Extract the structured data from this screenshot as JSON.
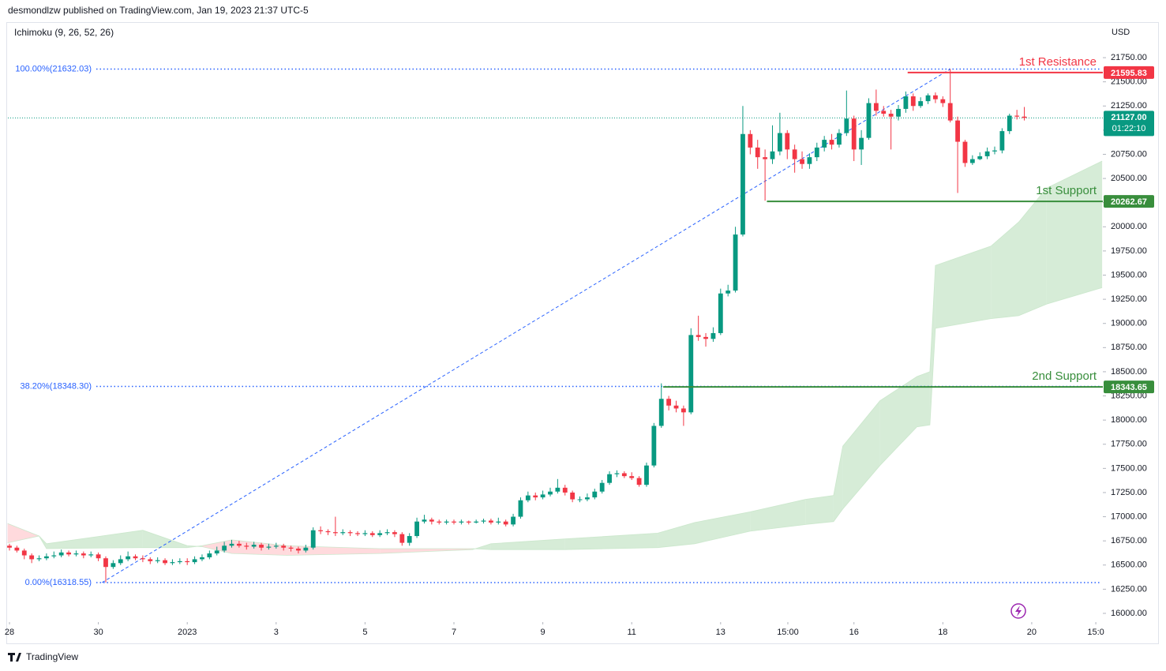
{
  "header": {
    "publisher": "desmondlzw published on TradingView.com, Jan 19, 2023 21:37 UTC-5",
    "indicator": "Ichimoku (9, 26, 52, 26)",
    "currency": "USD",
    "brand": "TradingView"
  },
  "chart_data": {
    "type": "candlestick",
    "x": [
      0,
      4,
      8,
      12,
      16,
      20,
      24,
      28,
      32,
      36,
      40,
      44,
      48,
      52,
      56,
      60,
      64,
      68,
      72,
      76,
      80,
      84,
      88,
      92,
      96,
      100,
      104,
      108,
      112,
      116,
      120,
      124,
      128,
      132,
      136,
      140,
      144,
      148,
      152,
      156,
      160,
      164,
      168,
      172,
      176,
      180,
      184,
      188,
      192,
      196,
      200,
      204,
      208,
      212,
      216,
      220,
      224,
      228,
      232,
      236,
      240,
      244,
      248,
      252,
      256,
      260,
      264,
      268,
      272,
      276,
      280,
      284,
      288,
      292,
      296,
      300,
      304,
      308,
      312,
      316,
      320,
      324,
      328,
      332,
      336,
      340,
      344,
      348,
      352,
      356,
      360,
      364,
      368,
      372,
      376,
      380,
      384,
      388,
      392,
      396,
      400,
      404,
      408,
      412,
      416,
      420,
      424,
      428,
      432,
      436,
      440,
      444,
      448,
      452,
      456,
      460,
      464,
      468,
      472,
      476,
      480,
      484,
      488,
      492,
      496,
      500,
      504,
      508,
      512,
      516,
      520,
      524,
      528,
      532,
      536,
      540,
      544,
      548
    ],
    "open": [
      16700,
      16680,
      16650,
      16600,
      16560,
      16570,
      16590,
      16600,
      16630,
      16610,
      16620,
      16600,
      16610,
      16570,
      16480,
      16520,
      16560,
      16590,
      16570,
      16560,
      16540,
      16550,
      16520,
      16530,
      16540,
      16530,
      16560,
      16580,
      16620,
      16650,
      16700,
      16720,
      16700,
      16690,
      16710,
      16680,
      16690,
      16700,
      16680,
      16670,
      16650,
      16680,
      16860,
      16850,
      16840,
      16830,
      16840,
      16830,
      16820,
      16830,
      16810,
      16830,
      16840,
      16820,
      16730,
      16800,
      16950,
      16970,
      16950,
      16940,
      16950,
      16940,
      16950,
      16940,
      16950,
      16960,
      16940,
      16950,
      16920,
      17000,
      17170,
      17220,
      17200,
      17230,
      17260,
      17300,
      17250,
      17180,
      17180,
      17200,
      17260,
      17350,
      17440,
      17450,
      17420,
      17400,
      17330,
      17530,
      17940,
      18220,
      18150,
      18120,
      18080,
      18880,
      18860,
      18840,
      18900,
      19310,
      19340,
      19920,
      20960,
      20820,
      20720,
      20700,
      20780,
      20970,
      20800,
      20700,
      20650,
      20720,
      20820,
      20900,
      20850,
      20970,
      21120,
      20800,
      20920,
      21280,
      21200,
      21170,
      21140,
      21220,
      21350,
      21250,
      21300,
      21360,
      21320,
      21280,
      21100,
      20880,
      20660,
      20700,
      20730,
      20780,
      20790,
      20990,
      21150,
      21140
    ],
    "high": [
      16720,
      16700,
      16670,
      16620,
      16600,
      16620,
      16640,
      16660,
      16650,
      16650,
      16640,
      16640,
      16630,
      16590,
      16550,
      16600,
      16640,
      16610,
      16600,
      16580,
      16580,
      16570,
      16560,
      16570,
      16570,
      16590,
      16610,
      16650,
      16690,
      16740,
      16760,
      16750,
      16730,
      16740,
      16730,
      16720,
      16730,
      16720,
      16700,
      16690,
      16710,
      16890,
      16900,
      16870,
      17000,
      16870,
      16860,
      16850,
      16860,
      16850,
      16860,
      16870,
      16860,
      16840,
      16830,
      16990,
      17020,
      16990,
      16970,
      16970,
      16970,
      16970,
      16960,
      16970,
      16980,
      16980,
      16990,
      16970,
      17030,
      17200,
      17260,
      17250,
      17270,
      17300,
      17390,
      17330,
      17270,
      17210,
      17240,
      17290,
      17380,
      17470,
      17480,
      17470,
      17460,
      17420,
      17560,
      17970,
      18380,
      18250,
      18200,
      18150,
      18950,
      19080,
      18900,
      18960,
      19360,
      19400,
      20000,
      21250,
      21000,
      20900,
      20800,
      21050,
      21180,
      21000,
      20850,
      20780,
      20760,
      20870,
      20940,
      20960,
      21010,
      21410,
      21150,
      21000,
      21330,
      21420,
      21250,
      21210,
      21260,
      21400,
      21380,
      21340,
      21380,
      21390,
      21350,
      21632,
      21140,
      20900,
      20740,
      20770,
      20820,
      20830,
      21020,
      21170,
      21210,
      21240
    ],
    "low": [
      16650,
      16630,
      16560,
      16520,
      16540,
      16550,
      16570,
      16580,
      16590,
      16590,
      16570,
      16580,
      16540,
      16320,
      16460,
      16500,
      16540,
      16550,
      16530,
      16510,
      16520,
      16500,
      16500,
      16510,
      16500,
      16510,
      16540,
      16560,
      16600,
      16630,
      16680,
      16680,
      16660,
      16670,
      16650,
      16660,
      16670,
      16650,
      16640,
      16620,
      16630,
      16660,
      16820,
      16810,
      16800,
      16810,
      16800,
      16800,
      16800,
      16790,
      16790,
      16810,
      16790,
      16700,
      16700,
      16780,
      16930,
      16920,
      16920,
      16920,
      16920,
      16920,
      16920,
      16930,
      16930,
      16920,
      16920,
      16900,
      16900,
      16980,
      17150,
      17170,
      17180,
      17210,
      17240,
      17220,
      17150,
      17150,
      17160,
      17180,
      17240,
      17330,
      17410,
      17400,
      17380,
      17310,
      17310,
      17510,
      17920,
      18100,
      18080,
      17940,
      18060,
      18820,
      18760,
      18810,
      18880,
      19280,
      19320,
      19900,
      20750,
      20600,
      20270,
      20650,
      20740,
      20700,
      20560,
      20600,
      20600,
      20680,
      20780,
      20800,
      20820,
      20940,
      20680,
      20640,
      20900,
      21150,
      21140,
      20800,
      21100,
      21180,
      21200,
      21230,
      21270,
      21280,
      21240,
      21080,
      20350,
      20620,
      20640,
      20690,
      20700,
      20750,
      20760,
      20960,
      21110,
      21100
    ],
    "close": [
      16680,
      16650,
      16600,
      16560,
      16570,
      16590,
      16600,
      16630,
      16610,
      16620,
      16600,
      16610,
      16570,
      16480,
      16520,
      16560,
      16590,
      16570,
      16560,
      16540,
      16550,
      16520,
      16530,
      16540,
      16530,
      16560,
      16580,
      16620,
      16650,
      16700,
      16720,
      16700,
      16690,
      16710,
      16680,
      16690,
      16700,
      16680,
      16670,
      16650,
      16680,
      16860,
      16850,
      16840,
      16830,
      16840,
      16830,
      16820,
      16830,
      16810,
      16830,
      16840,
      16820,
      16730,
      16800,
      16950,
      16970,
      16950,
      16940,
      16950,
      16940,
      16950,
      16940,
      16950,
      16960,
      16940,
      16950,
      16920,
      17000,
      17170,
      17220,
      17200,
      17230,
      17260,
      17300,
      17250,
      17180,
      17180,
      17200,
      17260,
      17350,
      17440,
      17450,
      17420,
      17400,
      17330,
      17530,
      17940,
      18220,
      18150,
      18120,
      18080,
      18880,
      18860,
      18840,
      18900,
      19310,
      19340,
      19920,
      20960,
      20820,
      20720,
      20700,
      20780,
      20970,
      20800,
      20700,
      20650,
      20720,
      20820,
      20900,
      20850,
      20970,
      21120,
      20800,
      20920,
      21280,
      21200,
      21170,
      21140,
      21220,
      21350,
      21250,
      21300,
      21360,
      21320,
      21280,
      21100,
      20880,
      20660,
      20700,
      20730,
      20780,
      20790,
      20990,
      21150,
      21140,
      21127
    ],
    "up_color": "#089981",
    "down_color": "#f23645",
    "xlim": [
      -0.85,
      590.4
    ],
    "xticks": [
      {
        "value": 0,
        "label": "28"
      },
      {
        "value": 48,
        "label": "30"
      },
      {
        "value": 96,
        "label": "2023"
      },
      {
        "value": 144,
        "label": "3"
      },
      {
        "value": 192,
        "label": "5"
      },
      {
        "value": 240,
        "label": "7"
      },
      {
        "value": 288,
        "label": "9"
      },
      {
        "value": 336,
        "label": "11"
      },
      {
        "value": 384,
        "label": "13"
      },
      {
        "value": 420.3,
        "label": "15:00"
      },
      {
        "value": 456,
        "label": "16"
      },
      {
        "value": 504,
        "label": "18"
      },
      {
        "value": 552,
        "label": "20"
      },
      {
        "value": 586.6,
        "label": "15:0"
      }
    ],
    "ylim": [
      15910,
      22118
    ],
    "yticks": [
      {
        "value": 16000,
        "label": "16000.00"
      },
      {
        "value": 16250,
        "label": "16250.00"
      },
      {
        "value": 16500,
        "label": "16500.00"
      },
      {
        "value": 16750,
        "label": "16750.00"
      },
      {
        "value": 17000,
        "label": "17000.00"
      },
      {
        "value": 17250,
        "label": "17250.00"
      },
      {
        "value": 17500,
        "label": "17500.00"
      },
      {
        "value": 17750,
        "label": "17750.00"
      },
      {
        "value": 18000,
        "label": "18000.00"
      },
      {
        "value": 18250,
        "label": "18250.00"
      },
      {
        "value": 18500,
        "label": "18500.00"
      },
      {
        "value": 18750,
        "label": "18750.00"
      },
      {
        "value": 19000,
        "label": "19000.00"
      },
      {
        "value": 19250,
        "label": "19250.00"
      },
      {
        "value": 19500,
        "label": "19500.00"
      },
      {
        "value": 19750,
        "label": "19750.00"
      },
      {
        "value": 20000,
        "label": "20000.00"
      },
      {
        "value": 20250,
        "label": "20250.00"
      },
      {
        "value": 20500,
        "label": "20500.00"
      },
      {
        "value": 20750,
        "label": "20750.00"
      },
      {
        "value": 21000,
        "label": "21000.00"
      },
      {
        "value": 21250,
        "label": "21250.00"
      },
      {
        "value": 21500,
        "label": "21500.00"
      },
      {
        "value": 21750,
        "label": "21750.00"
      }
    ],
    "grid": false,
    "cloud": {
      "x": [
        -1,
        16,
        20,
        72,
        96,
        104,
        120,
        150,
        200,
        250,
        260,
        300,
        350,
        370,
        400,
        430,
        445,
        450,
        470,
        490,
        497,
        500,
        530,
        545,
        560,
        590
      ],
      "span_a": [
        16730,
        16800,
        16720,
        16860,
        16700,
        16690,
        16620,
        16600,
        16620,
        16660,
        16720,
        16770,
        16830,
        16940,
        17050,
        17180,
        17220,
        17730,
        18200,
        18450,
        18500,
        19600,
        19800,
        20050,
        20400,
        20680
      ],
      "span_b": [
        16930,
        16800,
        16670,
        16680,
        16680,
        16700,
        16760,
        16700,
        16670,
        16670,
        16660,
        16660,
        16680,
        16720,
        16850,
        16920,
        16950,
        17080,
        17530,
        17930,
        17950,
        18950,
        19050,
        19080,
        19200,
        19370
      ],
      "up_color": "#c8e6c9",
      "down_color": "#ffcdd2"
    },
    "fib_levels": [
      {
        "label": "100.00%(21632.03)",
        "value": 21632.03
      },
      {
        "label": "38.20%(18348.30)",
        "value": 18348.3
      },
      {
        "label": "0.00%(16318.55)",
        "value": 16318.55
      }
    ],
    "fib_color": "#2962ff",
    "trend_x": [
      50,
      508
    ],
    "levels": [
      {
        "name": "1st Resistance",
        "value": 21595.83,
        "color": "#f23645",
        "x_start": 485
      },
      {
        "name": "1st Support",
        "value": 20262.67,
        "color": "#388e3c",
        "x_start": 409
      },
      {
        "name": "2nd Support",
        "value": 18343.65,
        "color": "#388e3c",
        "x_start": 353
      }
    ],
    "last_price": {
      "value": 21127,
      "label": "21127.00",
      "countdown": "01:22:10",
      "color": "#089981"
    }
  }
}
